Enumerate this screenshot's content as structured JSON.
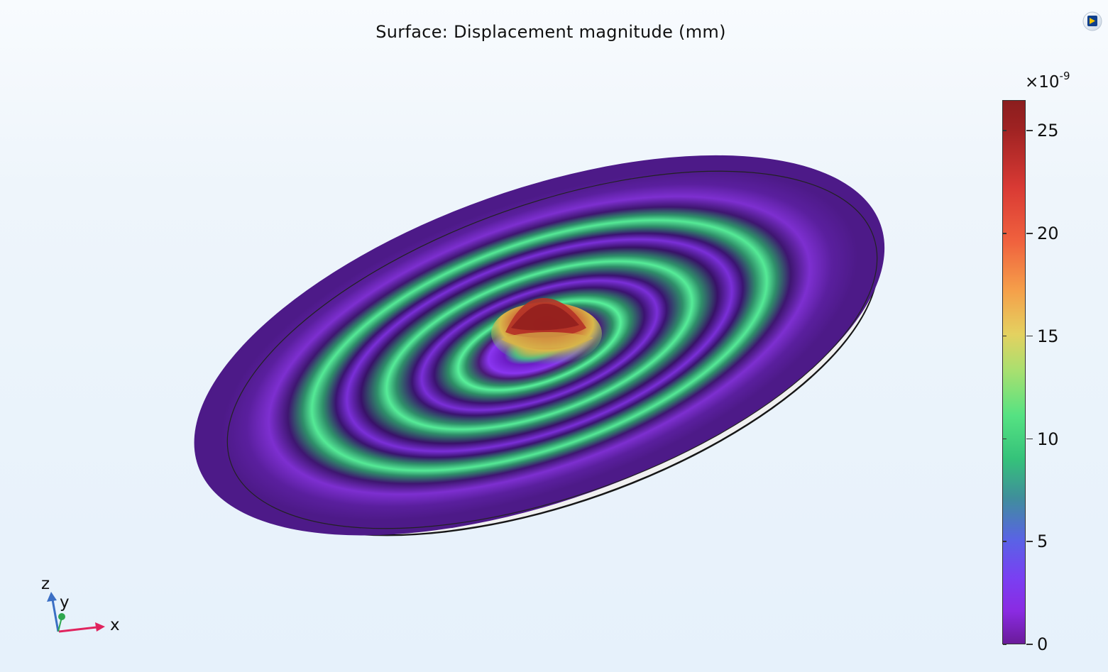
{
  "plot": {
    "title": "Surface: Displacement magnitude (mm)"
  },
  "colorbar": {
    "exponent_base": "×10",
    "exponent_power": "-9",
    "range": [
      0,
      26.5
    ],
    "ticks": [
      {
        "value": 25,
        "label": "25"
      },
      {
        "value": 20,
        "label": "20"
      },
      {
        "value": 15,
        "label": "15"
      },
      {
        "value": 10,
        "label": "10"
      },
      {
        "value": 5,
        "label": "5"
      },
      {
        "value": 0,
        "label": "0"
      }
    ]
  },
  "axes_triad": {
    "x_label": "x",
    "y_label": "y",
    "z_label": "z"
  },
  "colors": {
    "background_top": "#f8fbfe",
    "background_bottom": "#e6f1fb",
    "surface_low": "#6a1b9a",
    "surface_mid": "#35c27a",
    "surface_high": "#9e2222",
    "axis_x": "#e0245e",
    "axis_y": "#2fa84f",
    "axis_z": "#3b6fc4"
  },
  "icons": {
    "corner": "graphics-window-icon"
  }
}
